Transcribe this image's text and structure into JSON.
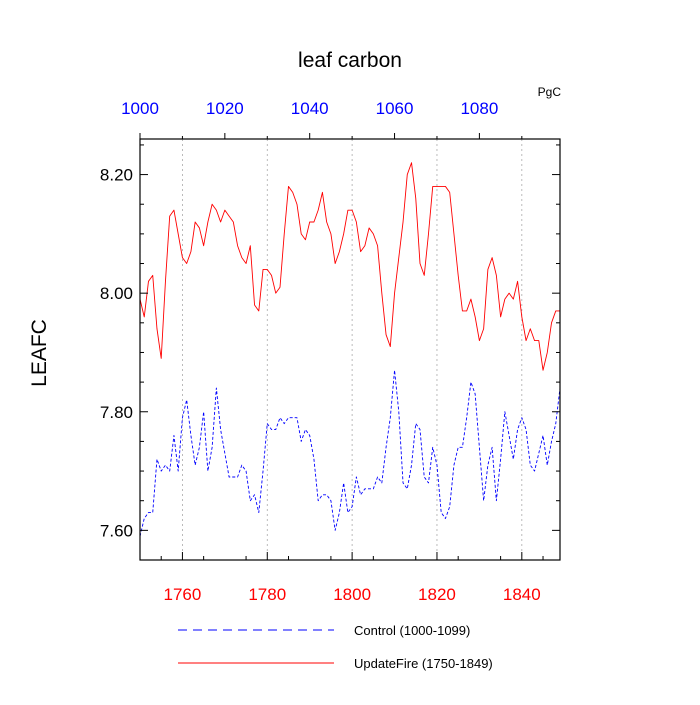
{
  "chart_data": {
    "type": "line",
    "title": "leaf carbon",
    "units": "PgC",
    "ylabel": "LEAFC",
    "ylim": [
      7.55,
      8.26
    ],
    "yticks": [
      "7.60",
      "7.80",
      "8.00",
      "8.20"
    ],
    "ytick_values": [
      7.6,
      7.8,
      8.0,
      8.2
    ],
    "x_bottom": {
      "range": [
        1750,
        1849
      ],
      "ticks": [
        "1760",
        "1780",
        "1800",
        "1820",
        "1840"
      ],
      "tick_values": [
        1760,
        1780,
        1800,
        1820,
        1840
      ],
      "color": "#ff0000"
    },
    "x_top": {
      "range": [
        1000,
        1099
      ],
      "ticks": [
        "1000",
        "1020",
        "1040",
        "1060",
        "1080"
      ],
      "tick_values": [
        1000,
        1020,
        1040,
        1060,
        1080
      ],
      "color": "#0000ff"
    },
    "grid": "vertical dashed at bottom ticks",
    "legend_position": "bottom",
    "series": [
      {
        "name": "Control (1000-1099)",
        "axis": "top",
        "color": "#0000ff",
        "style": "dashed",
        "x_start": 1000,
        "values": [
          7.59,
          7.62,
          7.63,
          7.63,
          7.72,
          7.7,
          7.71,
          7.7,
          7.76,
          7.7,
          7.79,
          7.82,
          7.76,
          7.71,
          7.74,
          7.8,
          7.7,
          7.74,
          7.84,
          7.77,
          7.73,
          7.69,
          7.69,
          7.69,
          7.71,
          7.7,
          7.65,
          7.66,
          7.63,
          7.7,
          7.78,
          7.77,
          7.77,
          7.79,
          7.78,
          7.79,
          7.79,
          7.79,
          7.75,
          7.77,
          7.76,
          7.72,
          7.65,
          7.66,
          7.66,
          7.65,
          7.6,
          7.63,
          7.68,
          7.63,
          7.64,
          7.69,
          7.66,
          7.67,
          7.67,
          7.67,
          7.69,
          7.68,
          7.74,
          7.79,
          7.87,
          7.8,
          7.68,
          7.67,
          7.71,
          7.78,
          7.77,
          7.69,
          7.68,
          7.74,
          7.71,
          7.63,
          7.62,
          7.64,
          7.71,
          7.74,
          7.74,
          7.79,
          7.85,
          7.83,
          7.74,
          7.65,
          7.71,
          7.74,
          7.65,
          7.72,
          7.8,
          7.76,
          7.72,
          7.77,
          7.79,
          7.77,
          7.71,
          7.7,
          7.73,
          7.76,
          7.71,
          7.75,
          7.78,
          7.84
        ]
      },
      {
        "name": "UpdateFire (1750-1849)",
        "axis": "bottom",
        "color": "#ff0000",
        "style": "solid",
        "x_start": 1750,
        "values": [
          7.99,
          7.96,
          8.02,
          8.03,
          7.94,
          7.89,
          8.02,
          8.13,
          8.14,
          8.1,
          8.06,
          8.05,
          8.07,
          8.12,
          8.11,
          8.08,
          8.12,
          8.15,
          8.14,
          8.12,
          8.14,
          8.13,
          8.12,
          8.08,
          8.06,
          8.05,
          8.08,
          7.98,
          7.97,
          8.04,
          8.04,
          8.03,
          8.0,
          8.01,
          8.1,
          8.18,
          8.17,
          8.15,
          8.1,
          8.09,
          8.12,
          8.12,
          8.14,
          8.17,
          8.12,
          8.1,
          8.05,
          8.07,
          8.1,
          8.14,
          8.14,
          8.12,
          8.07,
          8.08,
          8.11,
          8.1,
          8.08,
          8.0,
          7.93,
          7.91,
          8.0,
          8.06,
          8.12,
          8.2,
          8.22,
          8.16,
          8.05,
          8.03,
          8.1,
          8.18,
          8.18,
          8.18,
          8.18,
          8.17,
          8.1,
          8.03,
          7.97,
          7.97,
          7.99,
          7.96,
          7.92,
          7.94,
          8.04,
          8.06,
          8.03,
          7.96,
          7.99,
          8.0,
          7.99,
          8.02,
          7.96,
          7.92,
          7.94,
          7.92,
          7.92,
          7.87,
          7.9,
          7.95,
          7.97,
          7.97
        ]
      }
    ]
  }
}
